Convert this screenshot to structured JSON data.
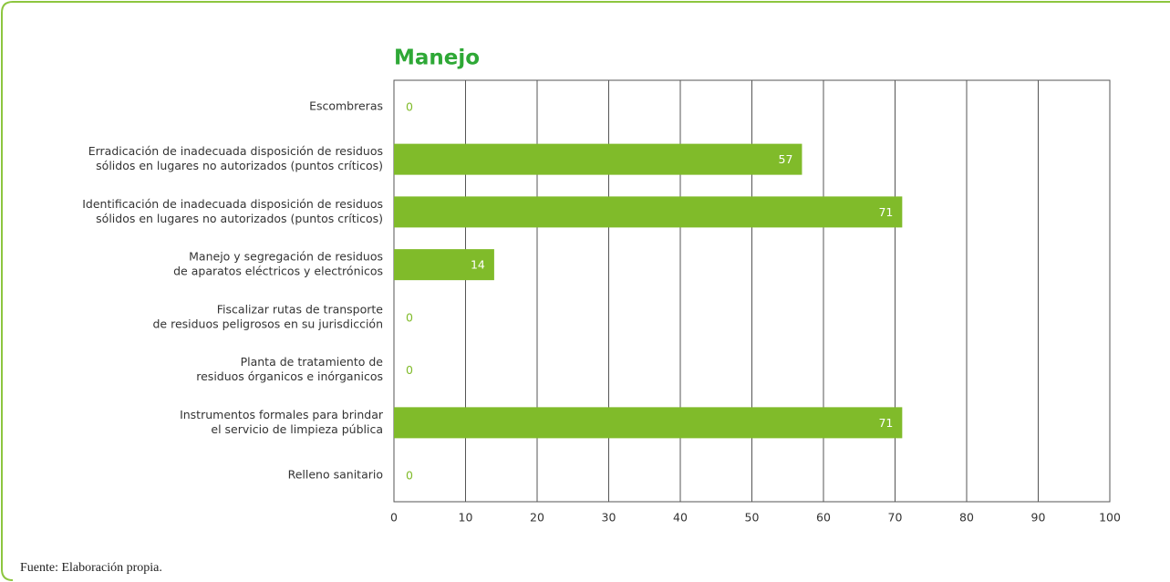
{
  "chart_data": {
    "type": "barh",
    "title": "Manejo",
    "categories": [
      [
        "Escombreras"
      ],
      [
        "Erradicación de inadecuada disposición de residuos",
        "sólidos en lugares no autorizados (puntos críticos)"
      ],
      [
        "Identificación de inadecuada disposición de residuos",
        "sólidos en lugares no autorizados (puntos críticos)"
      ],
      [
        "Manejo y segregación de residuos",
        "de aparatos eléctricos y electrónicos"
      ],
      [
        "Fiscalizar rutas de transporte",
        "de residuos peligrosos en su jurisdicción"
      ],
      [
        "Planta de tratamiento de",
        "residuos órganicos e inórganicos"
      ],
      [
        "Instrumentos formales para brindar",
        "el servicio de limpieza pública"
      ],
      [
        "Relleno sanitario"
      ]
    ],
    "values": [
      0,
      57,
      71,
      14,
      0,
      0,
      71,
      0
    ],
    "color": "#80bb2a",
    "xlim": [
      0,
      100
    ],
    "xticks": [
      0,
      10,
      20,
      30,
      40,
      50,
      60,
      70,
      80,
      90,
      100
    ],
    "grid": true,
    "source": "Fuente: Elaboración propia."
  }
}
